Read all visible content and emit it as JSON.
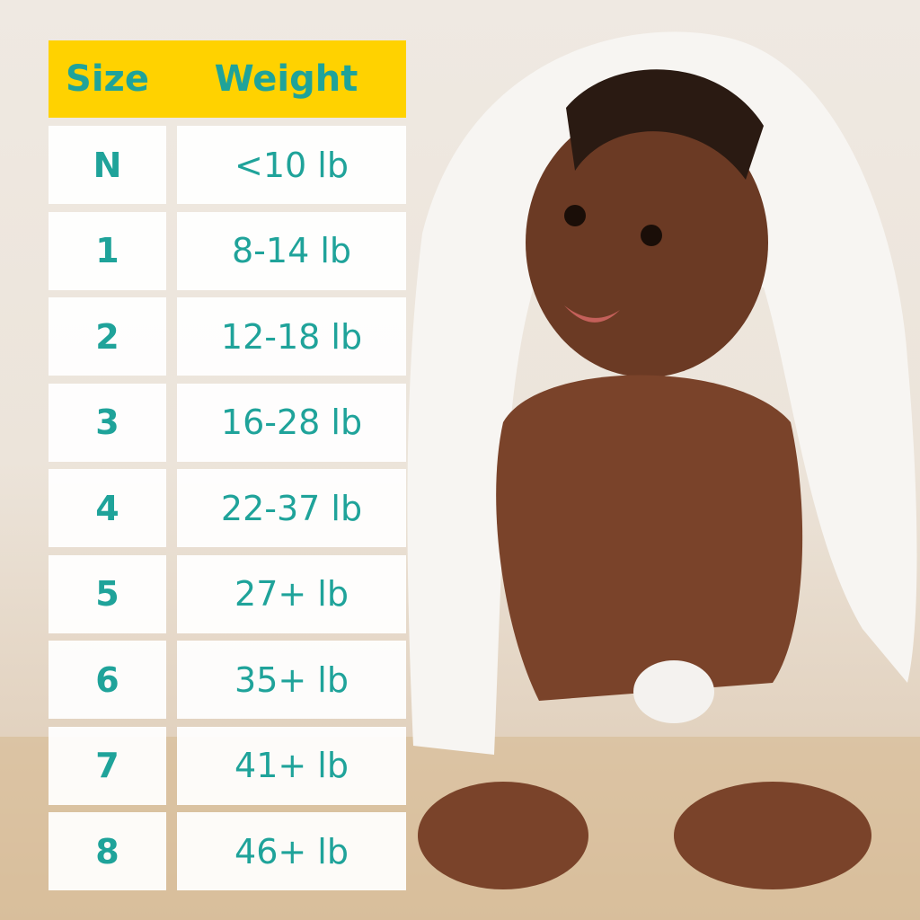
{
  "colors": {
    "header_bg": "#ffd200",
    "text": "#1fa39a",
    "cell_bg": "#ffffff"
  },
  "table": {
    "headers": [
      "Size",
      "Weight"
    ],
    "rows": [
      {
        "size": "N",
        "weight": "<10 lb"
      },
      {
        "size": "1",
        "weight": "8-14 lb"
      },
      {
        "size": "2",
        "weight": "12-18 lb"
      },
      {
        "size": "3",
        "weight": "16-28 lb"
      },
      {
        "size": "4",
        "weight": "22-37 lb"
      },
      {
        "size": "5",
        "weight": "27+ lb"
      },
      {
        "size": "6",
        "weight": "35+ lb"
      },
      {
        "size": "7",
        "weight": "41+ lb"
      },
      {
        "size": "8",
        "weight": "46+ lb"
      }
    ]
  }
}
